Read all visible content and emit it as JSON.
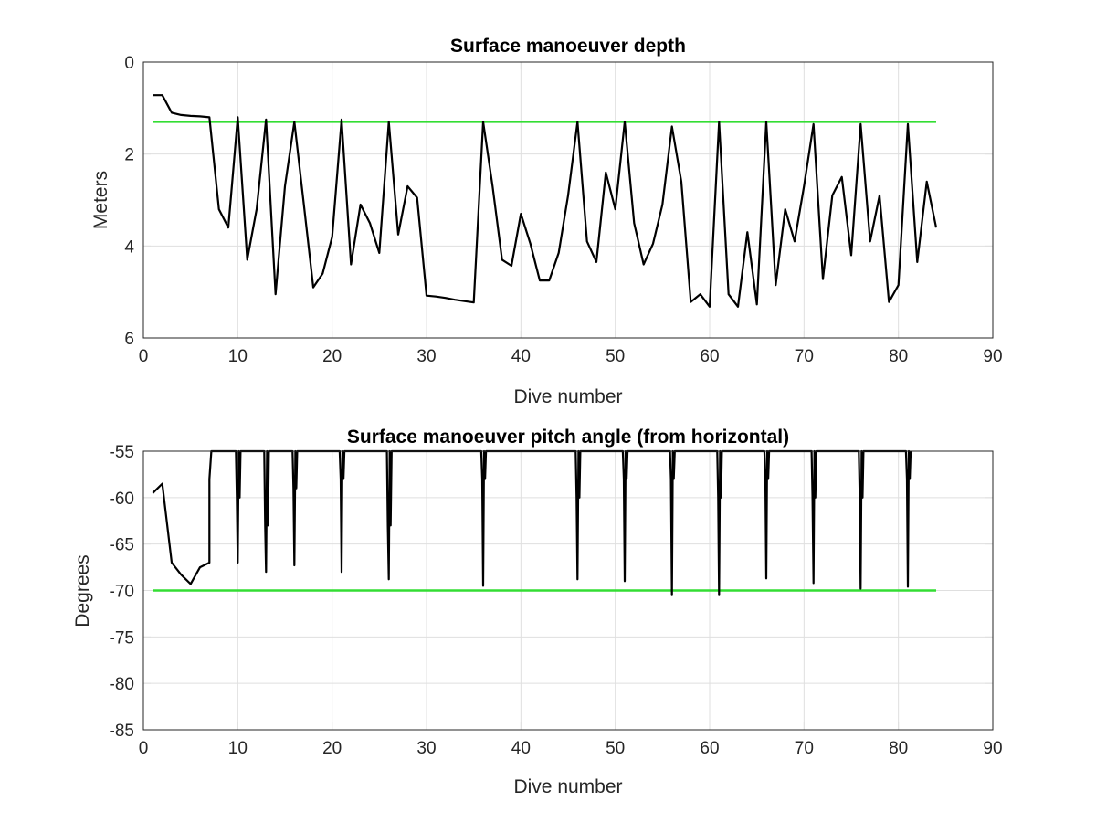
{
  "chart_data": [
    {
      "type": "line",
      "title": "Surface manoeuver depth",
      "xlabel": "Dive number",
      "ylabel": "Meters",
      "xlim": [
        0,
        90
      ],
      "ylim": [
        0,
        6
      ],
      "y_reversed": true,
      "grid": true,
      "x_ticks": [
        0,
        10,
        20,
        30,
        40,
        50,
        60,
        70,
        80,
        90
      ],
      "y_ticks": [
        0,
        2,
        4,
        6
      ],
      "series": [
        {
          "color": "#000000",
          "x": [
            1,
            2,
            3,
            4,
            5,
            6,
            7,
            8,
            9,
            10,
            11,
            12,
            13,
            14,
            15,
            16,
            17,
            18,
            19,
            20,
            21,
            22,
            23,
            24,
            25,
            26,
            27,
            28,
            29,
            30,
            31,
            32,
            33,
            34,
            35,
            36,
            37,
            38,
            39,
            40,
            41,
            42,
            43,
            44,
            45,
            46,
            47,
            48,
            49,
            50,
            51,
            52,
            53,
            54,
            55,
            56,
            57,
            58,
            59,
            60,
            61,
            62,
            63,
            64,
            65,
            66,
            67,
            68,
            69,
            70,
            71,
            72,
            73,
            74,
            75,
            76,
            77,
            78,
            79,
            80,
            81,
            82,
            83,
            84
          ],
          "y": [
            0.72,
            0.72,
            1.1,
            1.15,
            1.17,
            1.18,
            1.2,
            3.2,
            3.6,
            1.2,
            4.3,
            3.2,
            1.25,
            5.05,
            2.7,
            1.3,
            3.1,
            4.9,
            4.6,
            3.8,
            1.25,
            4.4,
            3.1,
            3.5,
            4.15,
            1.3,
            3.75,
            2.7,
            2.95,
            5.08,
            5.1,
            5.13,
            5.17,
            5.2,
            5.23,
            1.3,
            2.7,
            4.3,
            4.43,
            3.3,
            3.95,
            4.75,
            4.75,
            4.15,
            2.9,
            1.3,
            3.9,
            4.35,
            2.4,
            3.2,
            1.3,
            3.5,
            4.4,
            3.95,
            3.1,
            1.4,
            2.6,
            5.22,
            5.05,
            5.32,
            1.3,
            5.05,
            5.32,
            3.7,
            5.27,
            1.3,
            4.85,
            3.2,
            3.9,
            2.7,
            1.35,
            4.72,
            2.9,
            2.5,
            4.2,
            1.35,
            3.9,
            2.9,
            5.22,
            4.85,
            1.35,
            4.35,
            2.6,
            3.6
          ]
        }
      ],
      "reference_line": {
        "y": 1.3,
        "x_range": [
          1,
          84
        ],
        "color": "#33dd33"
      }
    },
    {
      "type": "line",
      "title": "Surface manoeuver pitch angle (from horizontal)",
      "xlabel": "Dive number",
      "ylabel": "Degrees",
      "xlim": [
        0,
        90
      ],
      "ylim": [
        -85,
        -55
      ],
      "grid": true,
      "x_ticks": [
        0,
        10,
        20,
        30,
        40,
        50,
        60,
        70,
        80,
        90
      ],
      "y_ticks": [
        -55,
        -60,
        -65,
        -70,
        -75,
        -80,
        -85
      ],
      "series": [
        {
          "color": "#000000",
          "x": [
            1,
            2,
            3,
            4,
            5,
            6,
            7,
            7,
            7.2,
            9.8,
            9.9,
            10,
            10.1,
            10.2,
            10.3,
            12.8,
            12.9,
            13,
            13.1,
            13.2,
            13.3,
            15.8,
            15.9,
            16,
            16.1,
            16.2,
            16.3,
            20.8,
            20.9,
            21,
            21.1,
            21.2,
            21.3,
            25.8,
            25.9,
            26,
            26.1,
            26.2,
            26.3,
            35.8,
            35.9,
            36,
            36.1,
            36.2,
            36.3,
            45.8,
            45.9,
            46,
            46.1,
            46.2,
            46.3,
            50.8,
            50.9,
            51,
            51.1,
            51.2,
            51.3,
            55.8,
            55.9,
            56,
            56.1,
            56.2,
            56.3,
            60.8,
            60.9,
            61,
            61.1,
            61.2,
            61.3,
            65.8,
            65.9,
            66,
            66.1,
            66.2,
            66.3,
            70.8,
            70.9,
            71,
            71.1,
            71.2,
            71.3,
            75.8,
            75.9,
            76,
            76.1,
            76.2,
            76.3,
            80.8,
            80.9,
            81,
            81.1,
            81.2,
            81.3
          ],
          "y": [
            -59.5,
            -58.5,
            -67,
            -68.3,
            -69.3,
            -67.5,
            -67,
            -58,
            -55,
            -55,
            -60,
            -67,
            -55,
            -60,
            -55,
            -55,
            -63,
            -68,
            -55,
            -63,
            -55,
            -55,
            -59,
            -67.3,
            -55,
            -59,
            -55,
            -55,
            -58,
            -68,
            -55,
            -58,
            -55,
            -55,
            -63,
            -68.8,
            -55,
            -63,
            -55,
            -55,
            -58,
            -69.5,
            -55,
            -58,
            -55,
            -55,
            -60,
            -68.8,
            -55,
            -60,
            -55,
            -55,
            -58,
            -69,
            -55,
            -58,
            -55,
            -55,
            -58,
            -70.5,
            -55,
            -58,
            -55,
            -55,
            -60,
            -70.5,
            -55,
            -60,
            -55,
            -55,
            -58,
            -68.7,
            -55,
            -58,
            -55,
            -55,
            -60,
            -69.2,
            -55,
            -60,
            -55,
            -55,
            -60,
            -69.8,
            -55,
            -60,
            -55,
            -55,
            -58,
            -69.6,
            -55,
            -58,
            -55
          ]
        }
      ],
      "reference_line": {
        "y": -70,
        "x_range": [
          1,
          84
        ],
        "color": "#33dd33"
      }
    }
  ]
}
